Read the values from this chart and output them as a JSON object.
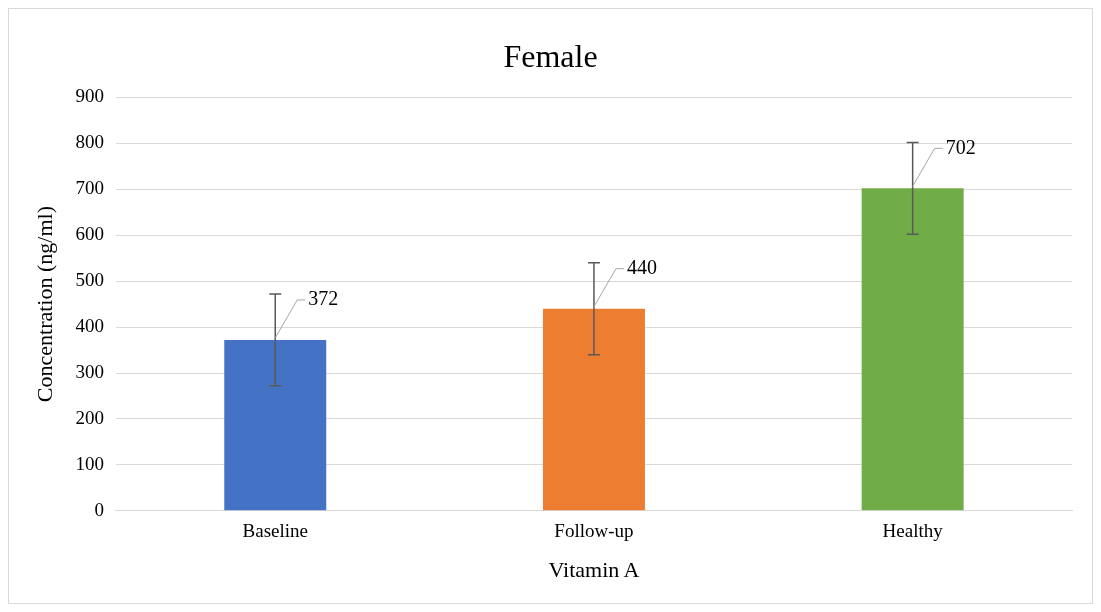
{
  "chart_data": {
    "type": "bar",
    "title": "Female",
    "xlabel": "Vitamin A",
    "ylabel": "Concentration (ng/ml)",
    "categories": [
      "Baseline",
      "Follow-up",
      "Healthy"
    ],
    "values": [
      372,
      440,
      702
    ],
    "colors": [
      "#4472c4",
      "#ed7d31",
      "#70ad47"
    ],
    "errors": [
      100,
      100,
      100
    ],
    "data_labels": true,
    "ylim": [
      0,
      900
    ],
    "yticks": [
      0,
      100,
      200,
      300,
      400,
      500,
      600,
      700,
      800,
      900
    ],
    "grid": "y",
    "legend": false
  }
}
